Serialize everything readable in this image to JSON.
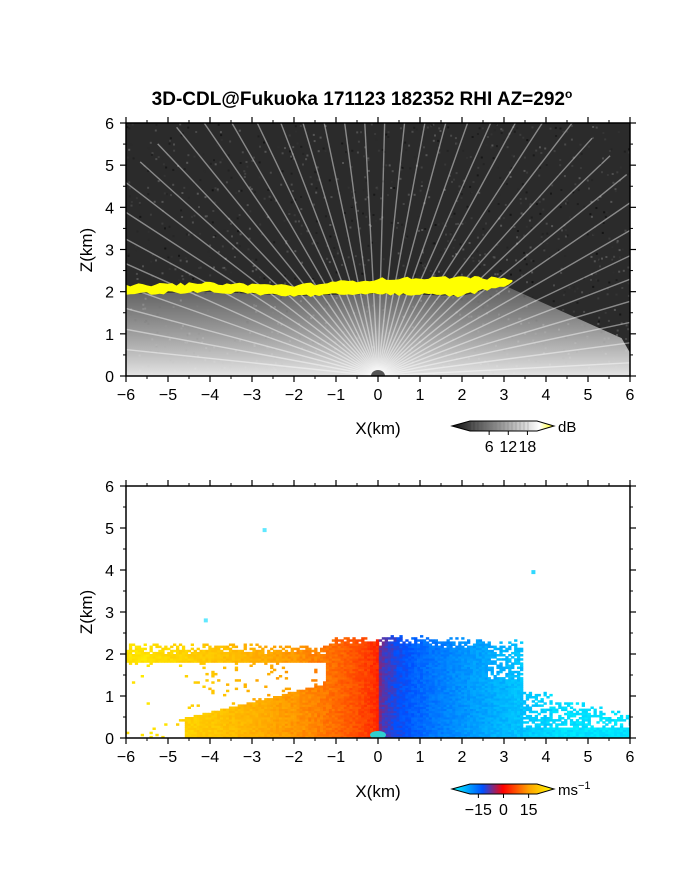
{
  "figure": {
    "title": "3D-CDL@Fukuoka 171123 182352 RHI AZ=292",
    "title_superscript": "o"
  },
  "chart_data": [
    {
      "type": "heatmap",
      "quantity": "backscatter intensity",
      "xlabel": "X(km)",
      "ylabel": "Z(km)",
      "xlim": [
        -6,
        6
      ],
      "ylim": [
        0,
        6
      ],
      "x_ticks": [
        -6,
        -5,
        -4,
        -3,
        -2,
        -1,
        0,
        1,
        2,
        3,
        4,
        5,
        6
      ],
      "y_ticks": [
        0,
        1,
        2,
        3,
        4,
        5,
        6
      ],
      "colorbar": {
        "unit": "dB",
        "ticks": [
          6,
          12,
          18
        ],
        "range": [
          0,
          21
        ],
        "colors": [
          "#111111",
          "#ffffff",
          "#ffff00"
        ]
      },
      "features": {
        "background_noise_color": "#2b2b2b",
        "strong_layer_color": "#ffff00",
        "strong_layer_x_extent": [
          -6,
          3.2
        ],
        "strong_layer_top_z": [
          [
            -6,
            2.15
          ],
          [
            -4,
            2.2
          ],
          [
            -2,
            2.15
          ],
          [
            0,
            2.3
          ],
          [
            2,
            2.35
          ],
          [
            3.2,
            2.3
          ]
        ],
        "strong_layer_bottom_z": [
          [
            -6,
            1.95
          ],
          [
            -4,
            2.0
          ],
          [
            -2,
            1.9
          ],
          [
            0,
            1.95
          ],
          [
            2,
            1.9
          ],
          [
            3.2,
            2.2
          ]
        ],
        "beam_origin_x": 0,
        "beam_fan_color": "#d8d8d8"
      }
    },
    {
      "type": "heatmap",
      "quantity": "radial velocity",
      "xlabel": "X(km)",
      "ylabel": "Z(km)",
      "xlim": [
        -6,
        6
      ],
      "ylim": [
        0,
        6
      ],
      "x_ticks": [
        -6,
        -5,
        -4,
        -3,
        -2,
        -1,
        0,
        1,
        2,
        3,
        4,
        5,
        6
      ],
      "y_ticks": [
        0,
        1,
        2,
        3,
        4,
        5,
        6
      ],
      "colorbar": {
        "unit": "ms",
        "unit_superscript": "−1",
        "ticks": [
          "−15",
          "0",
          "15"
        ],
        "tick_values": [
          -15,
          0,
          15
        ],
        "range": [
          -20,
          20
        ],
        "colors": [
          "#00ffff",
          "#0050ff",
          "#ff0000",
          "#ffa000",
          "#ffff00"
        ]
      },
      "features": {
        "negative_side": "x<0",
        "positive_side": "x>0",
        "echo_top_z": 2.4,
        "isolated_points": [
          [
            -2.7,
            4.95
          ],
          [
            3.7,
            3.95
          ],
          [
            -4.1,
            2.8
          ]
        ]
      }
    }
  ]
}
